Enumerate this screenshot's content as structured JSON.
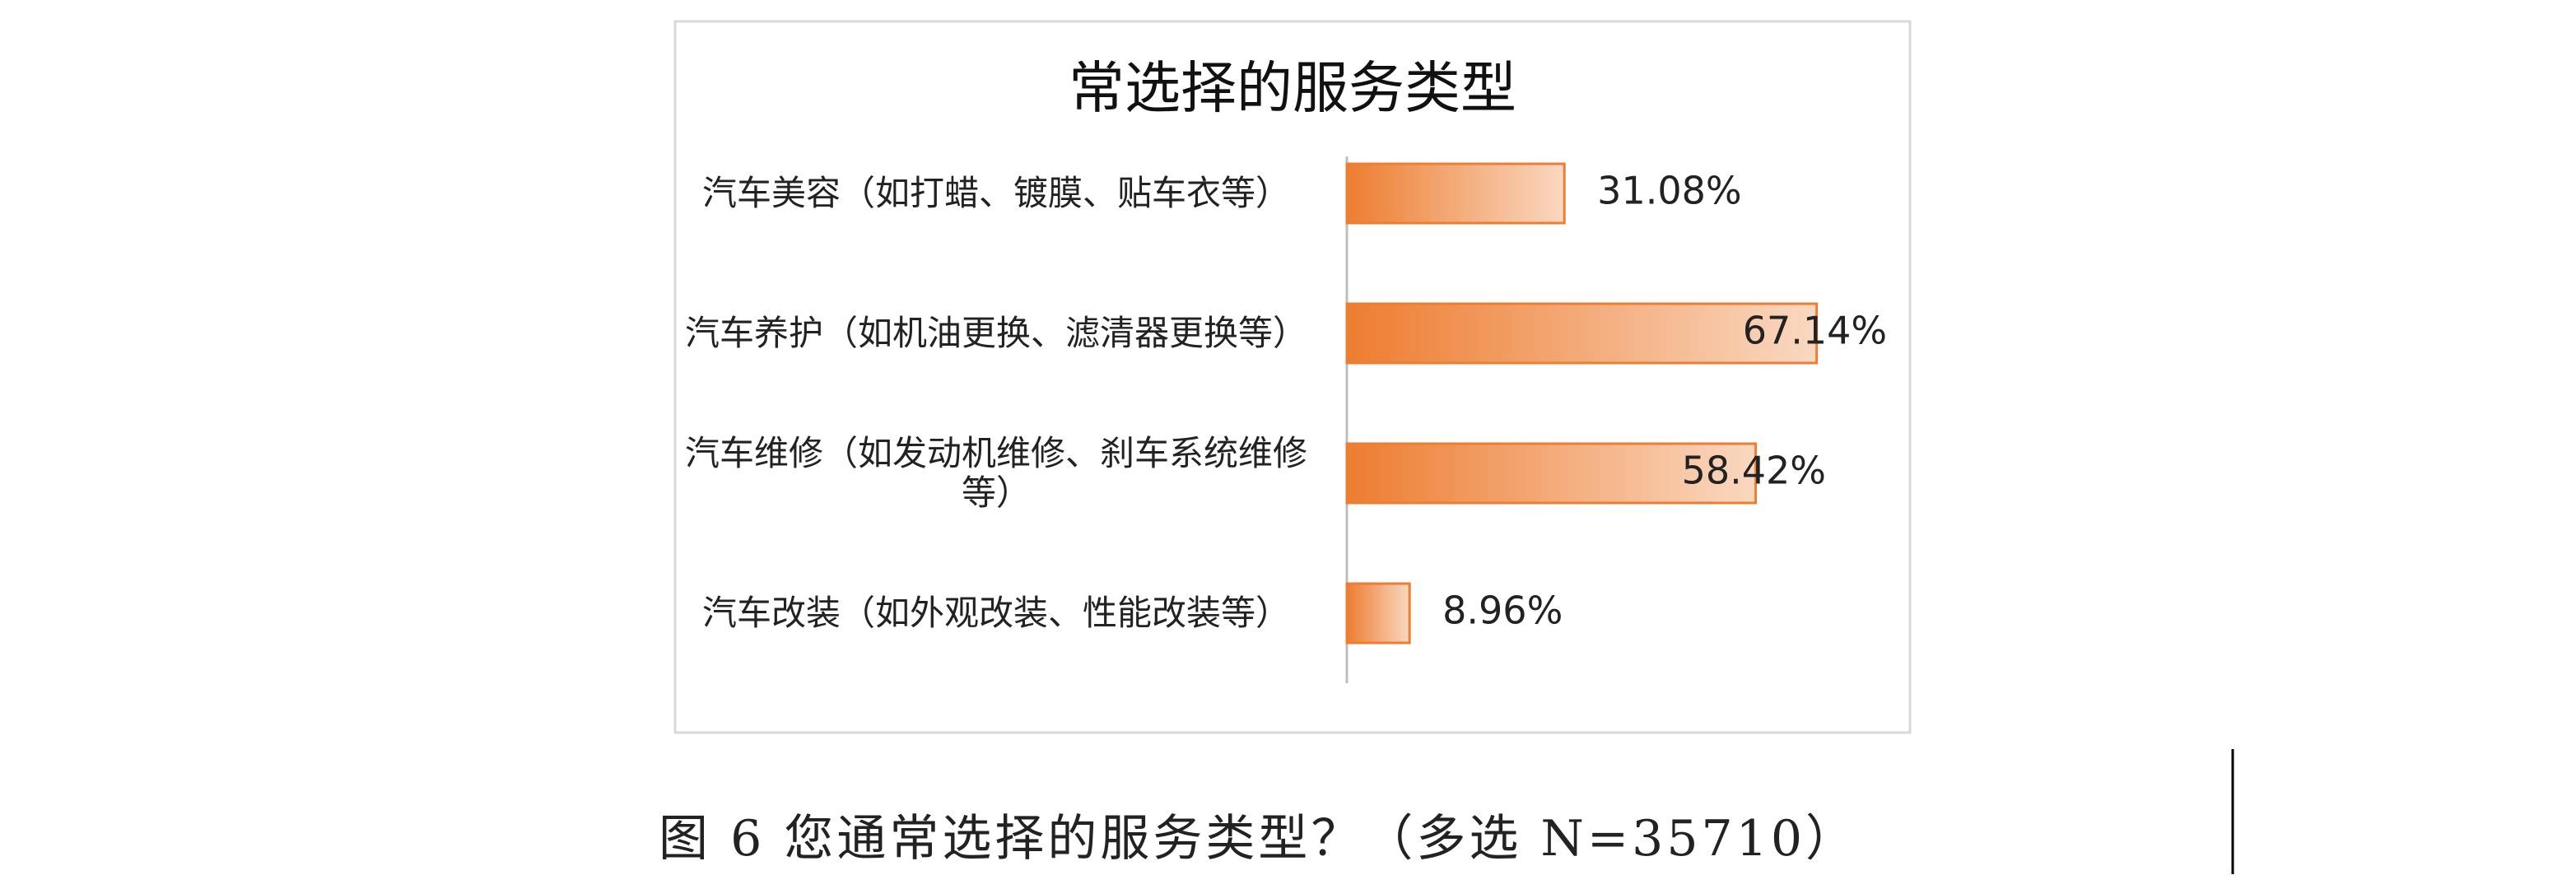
{
  "chart_data": {
    "type": "bar",
    "orientation": "horizontal",
    "title": "常选择的服务类型",
    "categories": [
      "汽车美容（如打蜡、镀膜、贴车衣等）",
      "汽车养护（如机油更换、滤清器更换等）",
      "汽车维修（如发动机维修、刹车系统维修等）",
      "汽车改装（如外观改装、性能改装等）"
    ],
    "values": [
      31.08,
      67.14,
      58.42,
      8.96
    ],
    "value_labels": [
      "31.08%",
      "67.14%",
      "58.42%",
      "8.96%"
    ],
    "color": "#ed7d31",
    "xlim": [
      0,
      100
    ]
  },
  "caption": "图 6 您通常选择的服务类型？（多选 N=35710）"
}
